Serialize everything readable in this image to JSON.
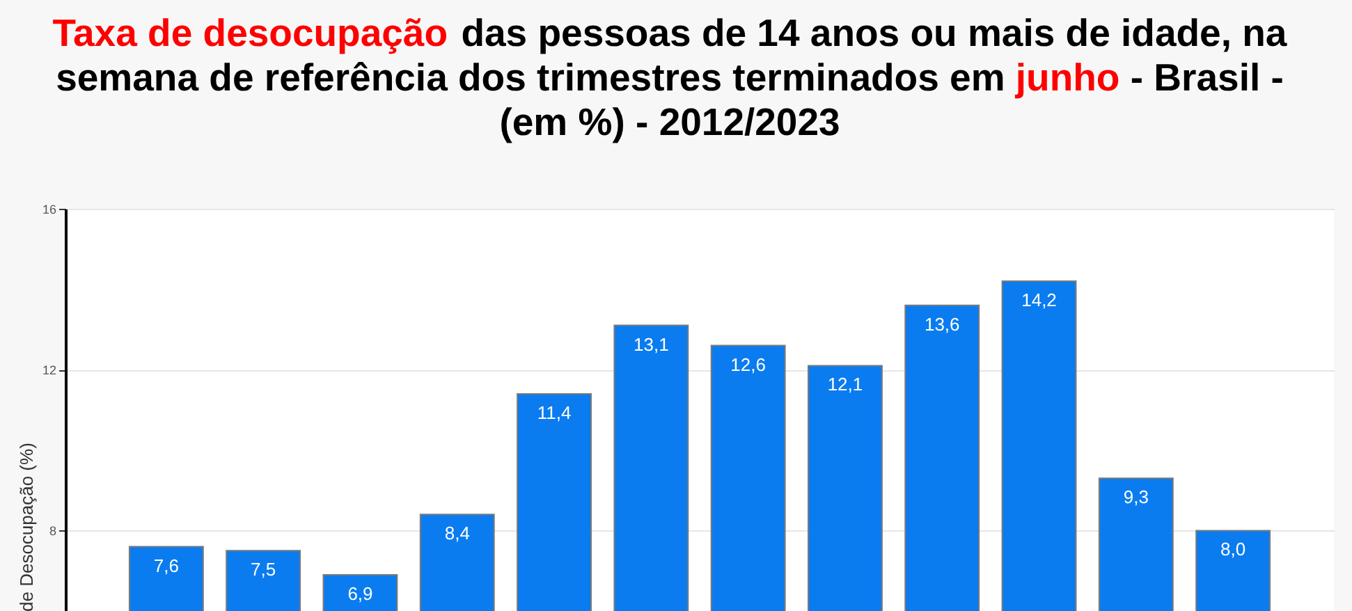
{
  "chart_data": {
    "type": "bar",
    "title": "Taxa de desocupação das pessoas de 14 anos ou mais de idade, na semana de referência dos trimestres terminados em junho - Brasil - (em %) - 2012/2023",
    "ylabel": "de Desocupação (%)",
    "categories": [
      null,
      null,
      null,
      null,
      null,
      null,
      null,
      null,
      null,
      null,
      null,
      null
    ],
    "values": [
      7.6,
      7.5,
      6.9,
      8.4,
      11.4,
      13.1,
      12.6,
      12.1,
      13.6,
      14.2,
      9.3,
      8.0
    ],
    "value_labels": [
      "7,6",
      "7,5",
      "6,9",
      "8,4",
      "11,4",
      "13,1",
      "12,6",
      "12,1",
      "13,6",
      "14,2",
      "9,3",
      "8,0"
    ],
    "color": "#0a7cf0",
    "ylim": [
      6,
      16
    ],
    "yticks": [
      8,
      12,
      16
    ],
    "grid": "y",
    "tick_labels": "y"
  }
}
